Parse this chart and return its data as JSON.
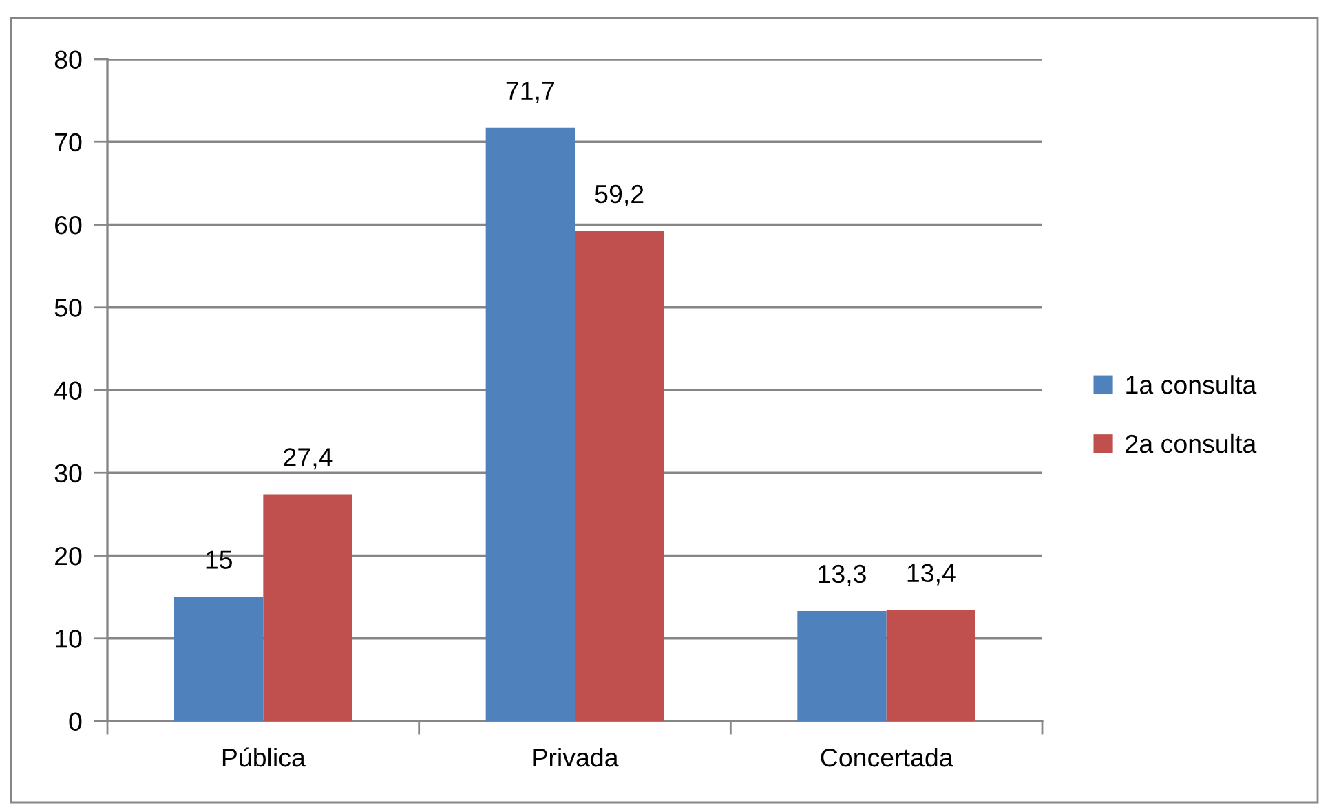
{
  "chart_data": {
    "type": "bar",
    "categories": [
      "Pública",
      "Privada",
      "Concertada"
    ],
    "series": [
      {
        "name": "1a consulta",
        "color": "#4f81bd",
        "values": [
          15,
          71.7,
          13.3
        ],
        "value_labels": [
          "15",
          "71,7",
          "13,3"
        ]
      },
      {
        "name": "2a consulta",
        "color": "#c0504d",
        "values": [
          27.4,
          59.2,
          13.4
        ],
        "value_labels": [
          "27,4",
          "59,2",
          "13,4"
        ]
      }
    ],
    "ylim": [
      0,
      80
    ],
    "yticks": [
      0,
      10,
      20,
      30,
      40,
      50,
      60,
      70,
      80
    ],
    "grid": "y",
    "legend": "right"
  }
}
